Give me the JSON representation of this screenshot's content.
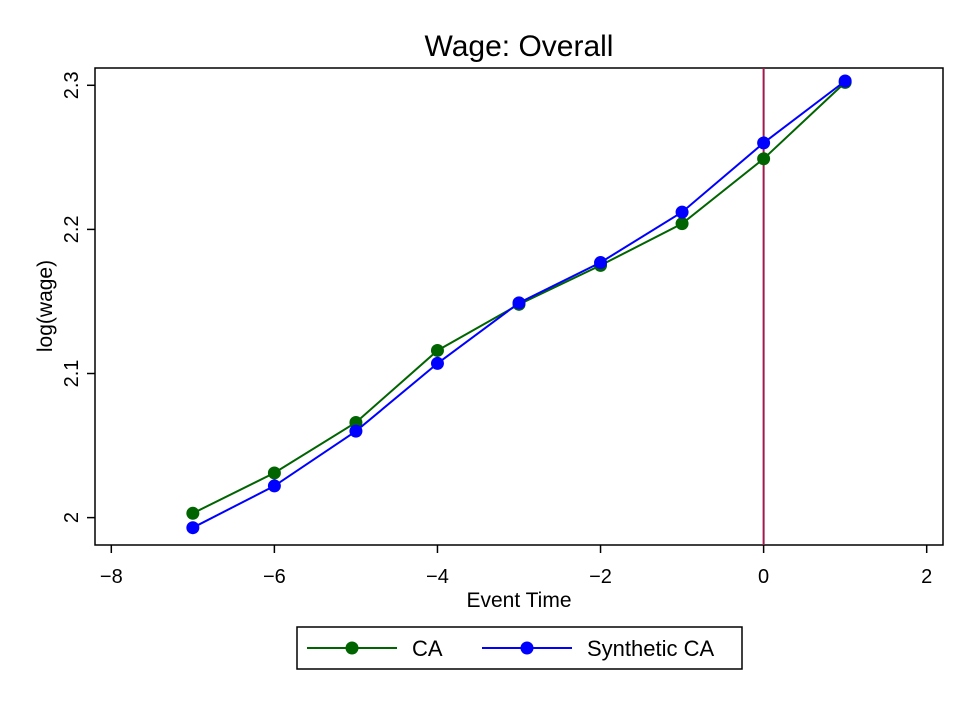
{
  "chart_data": {
    "type": "line",
    "title": "Wage: Overall",
    "xlabel": "Event Time",
    "ylabel": "log(wage)",
    "xlim": [
      -8.2,
      2.2
    ],
    "ylim": [
      1.981,
      2.312
    ],
    "xticks": [
      -8,
      -6,
      -4,
      -2,
      0,
      2
    ],
    "yticks": [
      2,
      2.1,
      2.2,
      2.3
    ],
    "x": [
      -7,
      -6,
      -5,
      -4,
      -3,
      -2,
      -1,
      0,
      1
    ],
    "series": [
      {
        "name": "CA",
        "color": "#006400",
        "marker": "circle",
        "values": [
          2.003,
          2.031,
          2.066,
          2.116,
          2.148,
          2.175,
          2.204,
          2.249,
          2.302
        ]
      },
      {
        "name": "Synthetic CA",
        "color": "#0000ff",
        "marker": "circle",
        "values": [
          1.993,
          2.022,
          2.06,
          2.107,
          2.149,
          2.177,
          2.212,
          2.26,
          2.303
        ]
      }
    ],
    "reference_line": {
      "axis": "x",
      "value": 0,
      "color": "#9e1b4d"
    },
    "grid": false,
    "legend": {
      "placement": "bottom-center"
    }
  }
}
